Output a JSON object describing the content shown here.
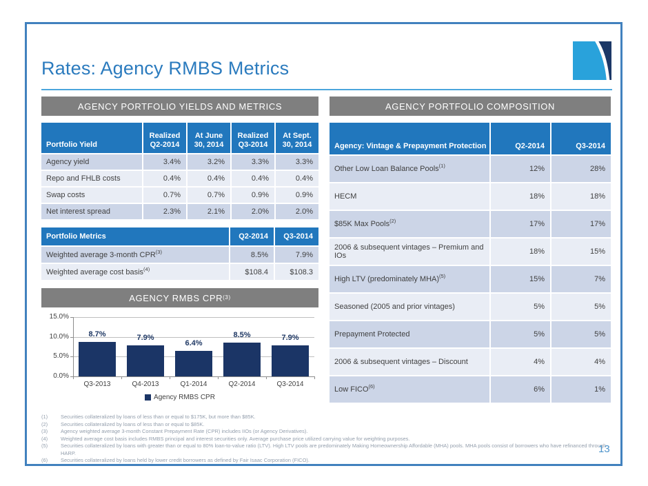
{
  "slide": {
    "title": "Rates: Agency RMBS Metrics",
    "page_number": "13"
  },
  "colors": {
    "header_blue": "#2177BD",
    "section_gray": "#7F7F7F",
    "row_dark": "#CCD5E7",
    "row_light": "#E9EDF5",
    "navy": "#1B3566",
    "logo_light_blue": "#29A2DB",
    "title_blue": "#2B7BBE",
    "rule_blue": "#4BA6DC",
    "frame_blue": "#4181BE",
    "footnote_gray": "#939EAC"
  },
  "left_panel": {
    "section_title": "AGENCY PORTFOLIO YIELDS AND METRICS",
    "yields_table": {
      "header": [
        "Portfolio Yield",
        "Realized\nQ2-2014",
        "At June\n30, 2014",
        "Realized\nQ3-2014",
        "At Sept.\n30, 2014"
      ],
      "rows": [
        {
          "label": "Agency yield",
          "sup": "",
          "values": [
            "3.4%",
            "3.2%",
            "3.3%",
            "3.3%"
          ],
          "shade": "dark"
        },
        {
          "label": "Repo and FHLB costs",
          "sup": "",
          "values": [
            "0.4%",
            "0.4%",
            "0.4%",
            "0.4%"
          ],
          "shade": "light"
        },
        {
          "label": "Swap costs",
          "sup": "",
          "values": [
            "0.7%",
            "0.7%",
            "0.9%",
            "0.9%"
          ],
          "shade": "light"
        },
        {
          "label": "Net interest spread",
          "sup": "",
          "values": [
            "2.3%",
            "2.1%",
            "2.0%",
            "2.0%"
          ],
          "shade": "dark"
        }
      ]
    },
    "metrics_table": {
      "header": [
        "Portfolio Metrics",
        "Q2-2014",
        "Q3-2014"
      ],
      "rows": [
        {
          "label": "Weighted average 3-month CPR",
          "sup": "(3)",
          "values": [
            "8.5%",
            "7.9%"
          ],
          "shade": "dark"
        },
        {
          "label": "Weighted average cost basis",
          "sup": "(4)",
          "values": [
            "$108.4",
            "$108.3"
          ],
          "shade": "light"
        }
      ]
    },
    "chart_section": {
      "title": "AGENCY RMBS CPR",
      "sup": "(3)"
    }
  },
  "right_panel": {
    "section_title": "AGENCY PORTFOLIO COMPOSITION",
    "composition_table": {
      "header": [
        "Agency: Vintage & Prepayment Protection",
        "Q2-2014",
        "Q3-2014"
      ],
      "rows": [
        {
          "label": "Other Low Loan Balance Pools",
          "sup": "(1)",
          "values": [
            "12%",
            "28%"
          ],
          "shade": "dark"
        },
        {
          "label": "HECM",
          "sup": "",
          "values": [
            "18%",
            "18%"
          ],
          "shade": "light"
        },
        {
          "label": "$85K Max Pools",
          "sup": "(2)",
          "values": [
            "17%",
            "17%"
          ],
          "shade": "dark"
        },
        {
          "label": "2006 & subsequent vintages – Premium and IOs",
          "sup": "",
          "values": [
            "18%",
            "15%"
          ],
          "shade": "light"
        },
        {
          "label": "High LTV (predominately MHA)",
          "sup": "(5)",
          "values": [
            "15%",
            "7%"
          ],
          "shade": "dark"
        },
        {
          "label": "Seasoned (2005 and prior vintages)",
          "sup": "",
          "values": [
            "5%",
            "5%"
          ],
          "shade": "light"
        },
        {
          "label": "Prepayment Protected",
          "sup": "",
          "values": [
            "5%",
            "5%"
          ],
          "shade": "dark"
        },
        {
          "label": "2006 & subsequent vintages – Discount",
          "sup": "",
          "values": [
            "4%",
            "4%"
          ],
          "shade": "light"
        },
        {
          "label": "Low FICO",
          "sup": "(6)",
          "values": [
            "6%",
            "1%"
          ],
          "shade": "dark"
        }
      ]
    }
  },
  "chart_data": {
    "type": "bar",
    "title": "AGENCY RMBS CPR(3)",
    "categories": [
      "Q3-2013",
      "Q4-2013",
      "Q1-2014",
      "Q2-2014",
      "Q3-2014"
    ],
    "values": [
      8.7,
      7.9,
      6.4,
      8.5,
      7.9
    ],
    "value_labels": [
      "8.7%",
      "7.9%",
      "6.4%",
      "8.5%",
      "7.9%"
    ],
    "legend": "Agency RMBS CPR",
    "xlabel": "",
    "ylabel": "",
    "ylim": [
      0,
      15
    ],
    "yticks": [
      {
        "value": 0,
        "label": "0.0%"
      },
      {
        "value": 5,
        "label": "5.0%"
      },
      {
        "value": 10,
        "label": "10.0%"
      },
      {
        "value": 15,
        "label": "15.0%"
      }
    ],
    "grid": true,
    "legend_position": "bottom",
    "bar_color": "#1B3566"
  },
  "footnotes": [
    {
      "num": "(1)",
      "text": "Securities collateralized by loans of less than or equal to $175K, but more than $85K."
    },
    {
      "num": "(2)",
      "text": "Securities collateralized by loans of less than or equal to $85K."
    },
    {
      "num": "(3)",
      "text": "Agency weighted average 3-month Constant Prepayment Rate (CPR) includes IIOs (or Agency Derivatives)."
    },
    {
      "num": "(4)",
      "text": "Weighted average cost basis includes RMBS principal and interest securities only.  Average purchase price utilized carrying value for weighting purposes."
    },
    {
      "num": "(5)",
      "text": "Securities collateralized by loans with greater than or equal to 80% loan-to-value ratio (LTV).  High LTV pools are predominately Making Homeownership Affordable (MHA) pools.  MHA pools consist of borrowers who have refinanced through HARP."
    },
    {
      "num": "(6)",
      "text": "Securities collateralized by loans held by lower credit borrowers as defined by Fair Isaac Corporation (FICO)."
    }
  ]
}
